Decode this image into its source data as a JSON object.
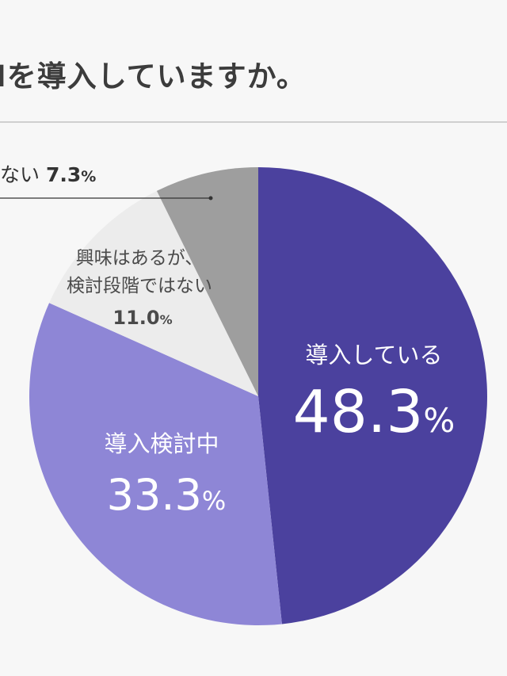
{
  "title": "Iを導入していますか。",
  "chart_data": {
    "type": "pie",
    "title": "Iを導入していますか。",
    "slices": [
      {
        "label": "導入している",
        "value": 48.3,
        "display_value": "48.3",
        "color": "#4b419e",
        "text_color": "#ffffff"
      },
      {
        "label": "導入検討中",
        "value": 33.3,
        "display_value": "33.3",
        "color": "#8e86d6",
        "text_color": "#ffffff"
      },
      {
        "label": "興味はあるが、\n検討段階ではない",
        "value": 11.0,
        "display_value": "11.0",
        "color": "#ececec",
        "text_color": "#4a4a4a"
      },
      {
        "label": "ない",
        "value": 7.3,
        "display_value": "7.3",
        "color": "#9e9e9e",
        "text_color": "#333333"
      }
    ],
    "unit": "%",
    "start_angle": "12 o'clock",
    "direction": "clockwise"
  }
}
